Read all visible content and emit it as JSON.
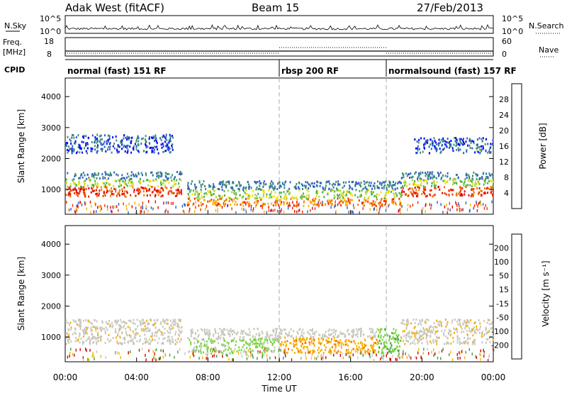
{
  "header": {
    "station": "Adak West (fitACF)",
    "beam": "Beam 15",
    "date": "27/Feb/2013"
  },
  "nsky_panel": {
    "label": "N.Sky",
    "y_top": "10^5",
    "y_bottom": "10^0",
    "right_label": "N.Search",
    "right_top": "10^5",
    "right_bottom": "10^0"
  },
  "freq_panel": {
    "label_line1": "Freq.",
    "label_line2": "[MHz]",
    "y_top": "18",
    "y_bottom": "8",
    "right_label": "Nave",
    "right_top": "60",
    "right_bottom": "0"
  },
  "cpid": {
    "label": "CPID",
    "segments": [
      {
        "name": "normal (fast) 151 RF",
        "start_hour": 0,
        "end_hour": 12
      },
      {
        "name": "rbsp 200 RF",
        "start_hour": 12,
        "end_hour": 18
      },
      {
        "name": "normalsound (fast) 157 RF",
        "start_hour": 18,
        "end_hour": 24
      }
    ]
  },
  "chart_data": [
    {
      "type": "heatmap",
      "title": "Power",
      "xlabel": "",
      "ylabel": "Slant Range [km]",
      "xlim_hours": [
        0,
        24
      ],
      "ylim": [
        200,
        4600
      ],
      "yticks": [
        1000,
        2000,
        3000,
        4000
      ],
      "colorbar_label": "Power [dB]",
      "colorbar_ticks": [
        "28",
        "24",
        "20",
        "16",
        "12",
        "8",
        "4"
      ],
      "colorbar_colors": [
        "#0000ff",
        "#2f5fc8",
        "#3f8f6f",
        "#4caf50",
        "#a8d84a",
        "#f0e000",
        "#f8b000",
        "#f07800",
        "#f03000",
        "#e00000"
      ],
      "features": [
        {
          "start_hour": 0.0,
          "end_hour": 6.5,
          "range_low": 800,
          "range_high": 1600,
          "level": "high"
        },
        {
          "start_hour": 0.0,
          "end_hour": 6.0,
          "range_low": 2200,
          "range_high": 2800,
          "level": "low"
        },
        {
          "start_hour": 6.8,
          "end_hour": 18.8,
          "range_low": 500,
          "range_high": 1300,
          "level": "medium"
        },
        {
          "start_hour": 18.8,
          "end_hour": 24.0,
          "range_low": 800,
          "range_high": 1600,
          "level": "high"
        },
        {
          "start_hour": 19.5,
          "end_hour": 24.0,
          "range_low": 2200,
          "range_high": 2700,
          "level": "low"
        }
      ]
    },
    {
      "type": "heatmap",
      "title": "Velocity",
      "xlabel": "Time UT",
      "ylabel": "Slant Range [km]",
      "xlim_hours": [
        0,
        24
      ],
      "ylim": [
        200,
        4600
      ],
      "yticks": [
        1000,
        2000,
        3000,
        4000
      ],
      "xticks": [
        "00:00",
        "04:00",
        "08:00",
        "12:00",
        "16:00",
        "20:00",
        "00:00"
      ],
      "colorbar_label": "Velocity [m s⁻¹]",
      "colorbar_ticks": [
        "200",
        "100",
        "50",
        "15",
        "-15",
        "-50",
        "-100",
        "-200"
      ],
      "colorbar_colors": [
        "#1a2fb0",
        "#2a6f5a",
        "#3f9f3f",
        "#7bd43f",
        "#c8c8c0",
        "#f8b000",
        "#f07800",
        "#e03000",
        "#d00000"
      ],
      "features": [
        {
          "start_hour": 0.0,
          "end_hour": 6.5,
          "range_low": 800,
          "range_high": 1600,
          "color_hint": "gray"
        },
        {
          "start_hour": 6.8,
          "end_hour": 12.0,
          "range_low": 500,
          "range_high": 1300,
          "color_hint": "green-gray"
        },
        {
          "start_hour": 12.0,
          "end_hour": 17.5,
          "range_low": 500,
          "range_high": 1300,
          "color_hint": "orange"
        },
        {
          "start_hour": 17.5,
          "end_hour": 18.8,
          "range_low": 500,
          "range_high": 1300,
          "color_hint": "green"
        },
        {
          "start_hour": 18.8,
          "end_hour": 24.0,
          "range_low": 800,
          "range_high": 1600,
          "color_hint": "gray"
        }
      ]
    }
  ]
}
